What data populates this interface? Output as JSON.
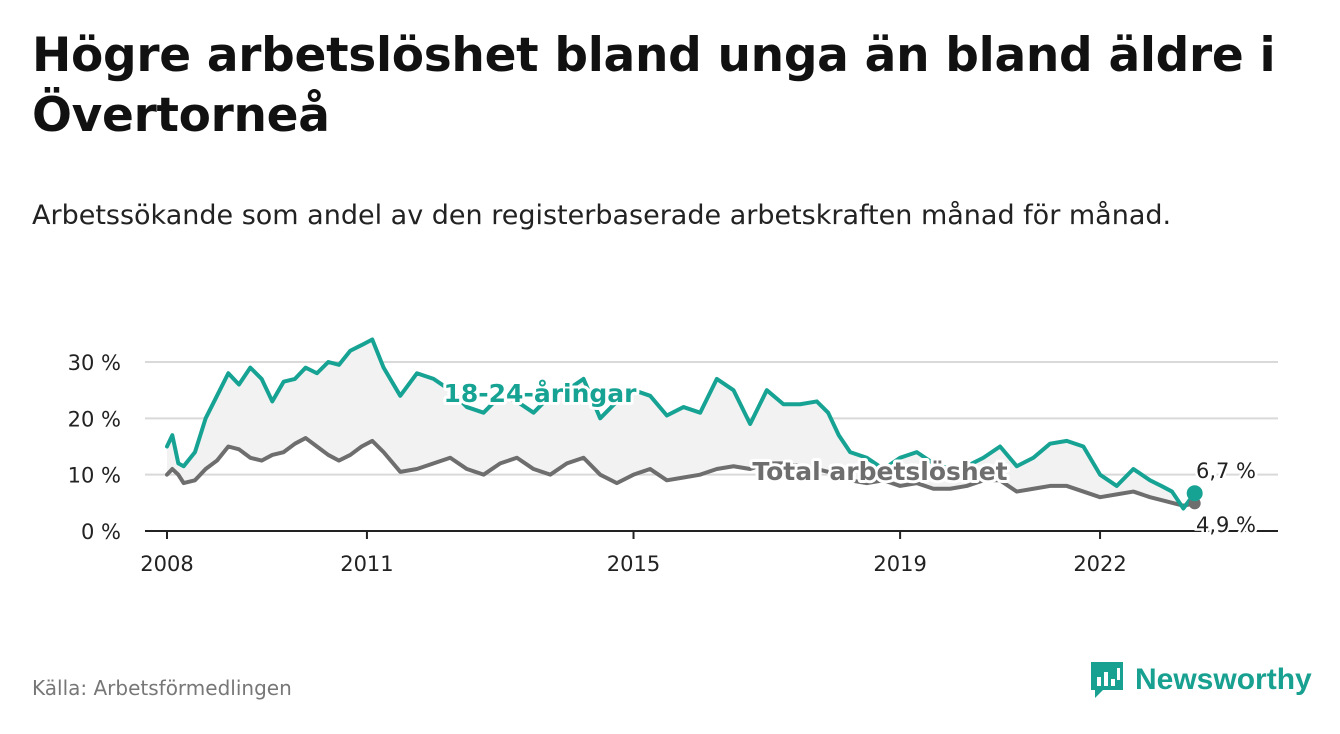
{
  "title": "Högre arbetslöshet bland unga än bland äldre i Övertorneå",
  "subtitle": "Arbetssökande som andel av den registerbaserade arbetskraften månad för månad.",
  "source": "Källa: Arbetsförmedlingen",
  "brand": {
    "name": "Newsworthy",
    "icon": "newsworthy-logo-icon"
  },
  "colors": {
    "youth": "#17a394",
    "total": "#6e6e6e",
    "grid": "#d9d9d9",
    "band": "#f2f2f2",
    "brand": "#18a090"
  },
  "chart_data": {
    "type": "line",
    "title": "Högre arbetslöshet bland unga än bland äldre i Övertorneå",
    "xlabel": "",
    "ylabel": "",
    "xlim": [
      2007.67,
      2024.67
    ],
    "ylim": [
      0,
      30
    ],
    "yticks": [
      0,
      10,
      20,
      30
    ],
    "ytick_labels": [
      "0 %",
      "10 %",
      "20 %",
      "30 %"
    ],
    "xticks": [
      2008,
      2011,
      2015,
      2019,
      2022
    ],
    "xtick_labels": [
      "2008",
      "2011",
      "2015",
      "2019",
      "2022"
    ],
    "grid": true,
    "series": [
      {
        "name": "18-24-åringar",
        "end_label": "6,7 %",
        "x": [
          2008.0,
          2008.08,
          2008.17,
          2008.25,
          2008.42,
          2008.58,
          2008.75,
          2008.92,
          2009.08,
          2009.25,
          2009.42,
          2009.58,
          2009.75,
          2009.92,
          2010.08,
          2010.25,
          2010.42,
          2010.58,
          2010.75,
          2010.92,
          2011.08,
          2011.25,
          2011.5,
          2011.75,
          2012.0,
          2012.25,
          2012.5,
          2012.75,
          2013.0,
          2013.25,
          2013.5,
          2013.75,
          2014.0,
          2014.25,
          2014.5,
          2014.75,
          2015.0,
          2015.25,
          2015.5,
          2015.75,
          2016.0,
          2016.25,
          2016.5,
          2016.75,
          2017.0,
          2017.25,
          2017.5,
          2017.75,
          2017.92,
          2018.08,
          2018.25,
          2018.5,
          2018.75,
          2019.0,
          2019.25,
          2019.5,
          2019.75,
          2020.0,
          2020.25,
          2020.5,
          2020.75,
          2021.0,
          2021.25,
          2021.5,
          2021.75,
          2022.0,
          2022.25,
          2022.5,
          2022.75,
          2022.92,
          2023.08,
          2023.25,
          2023.42
        ],
        "values": [
          15,
          17,
          12,
          11.5,
          14,
          20,
          24,
          28,
          26,
          29,
          27,
          23,
          26.5,
          27,
          29,
          28,
          30,
          29.5,
          32,
          33,
          34,
          29,
          24,
          28,
          27,
          25,
          22,
          21,
          24,
          23,
          21,
          24,
          25,
          27,
          20,
          23,
          25,
          24,
          20.5,
          22,
          21,
          27,
          25,
          19,
          25,
          22.5,
          22.5,
          23,
          21,
          17,
          14,
          13,
          11,
          13,
          14,
          12,
          11,
          11.5,
          13,
          15,
          11.5,
          13,
          15.5,
          16,
          15,
          10,
          8,
          11,
          9,
          8,
          7,
          4,
          6.7
        ]
      },
      {
        "name": "Total arbetslöshet",
        "end_label": "4,9 %",
        "x": [
          2008.0,
          2008.08,
          2008.17,
          2008.25,
          2008.42,
          2008.58,
          2008.75,
          2008.92,
          2009.08,
          2009.25,
          2009.42,
          2009.58,
          2009.75,
          2009.92,
          2010.08,
          2010.25,
          2010.42,
          2010.58,
          2010.75,
          2010.92,
          2011.08,
          2011.25,
          2011.5,
          2011.75,
          2012.0,
          2012.25,
          2012.5,
          2012.75,
          2013.0,
          2013.25,
          2013.5,
          2013.75,
          2014.0,
          2014.25,
          2014.5,
          2014.75,
          2015.0,
          2015.25,
          2015.5,
          2015.75,
          2016.0,
          2016.25,
          2016.5,
          2016.75,
          2017.0,
          2017.25,
          2017.5,
          2017.75,
          2017.92,
          2018.08,
          2018.25,
          2018.5,
          2018.75,
          2019.0,
          2019.25,
          2019.5,
          2019.75,
          2020.0,
          2020.25,
          2020.5,
          2020.75,
          2021.0,
          2021.25,
          2021.5,
          2021.75,
          2022.0,
          2022.25,
          2022.5,
          2022.75,
          2022.92,
          2023.08,
          2023.25,
          2023.42
        ],
        "values": [
          10,
          11,
          10,
          8.5,
          9,
          11,
          12.5,
          15,
          14.5,
          13,
          12.5,
          13.5,
          14,
          15.5,
          16.5,
          15,
          13.5,
          12.5,
          13.5,
          15,
          16,
          14,
          10.5,
          11,
          12,
          13,
          11,
          10,
          12,
          13,
          11,
          10,
          12,
          13,
          10,
          8.5,
          10,
          11,
          9,
          9.5,
          10,
          11,
          11.5,
          11,
          12,
          12,
          11.5,
          11,
          10.5,
          9.5,
          9,
          8.5,
          9,
          8,
          8.5,
          7.5,
          7.5,
          8,
          9,
          9,
          7,
          7.5,
          8,
          8,
          7,
          6,
          6.5,
          7,
          6,
          5.5,
          5,
          4.5,
          4.9
        ]
      }
    ]
  }
}
